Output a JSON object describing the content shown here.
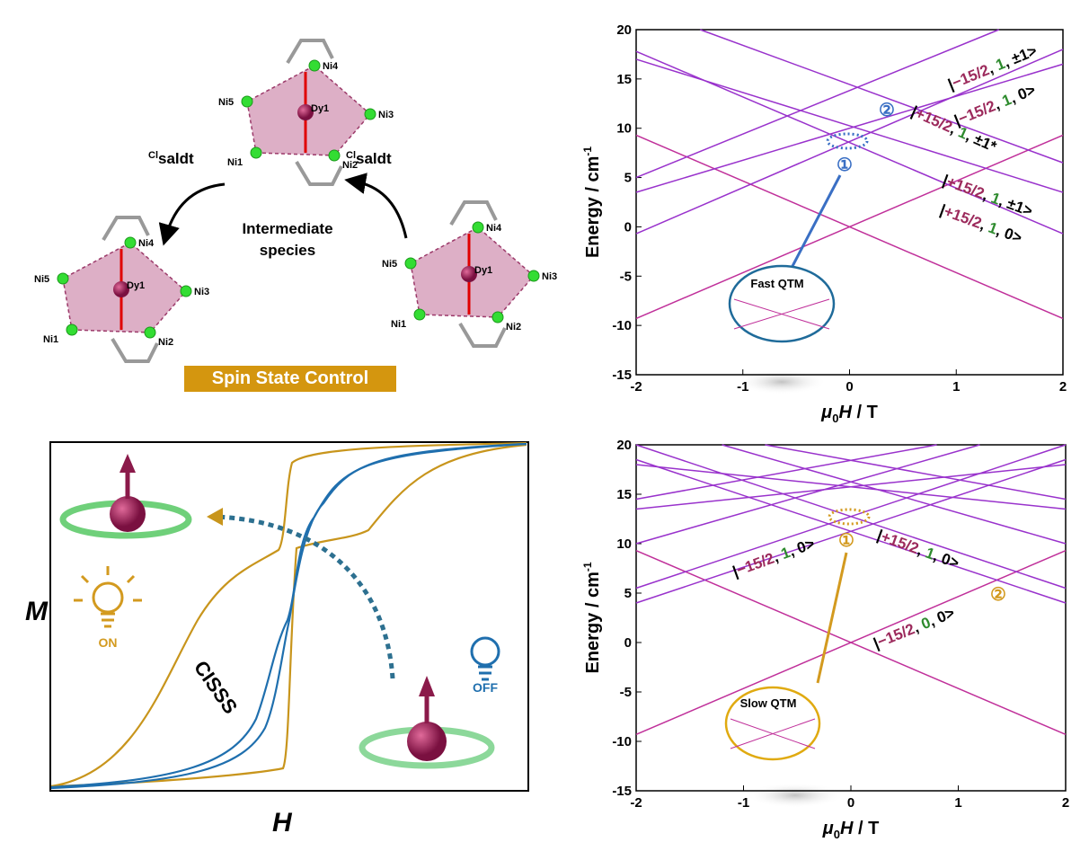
{
  "scheme": {
    "ligand_left": {
      "sup": "Cl",
      "text": "saldt"
    },
    "ligand_right": {
      "sup": "Cl",
      "text": "saldt"
    },
    "intermediate": [
      "Intermediate",
      "species"
    ],
    "banner": "Spin State Control",
    "clusters": [
      {
        "atoms": [
          "Dy1",
          "Ni1",
          "Ni2",
          "Ni3",
          "Ni4",
          "Ni5"
        ]
      },
      {
        "atoms": [
          "Dy1",
          "Ni1",
          "Ni2",
          "Ni3",
          "Ni4",
          "Ni5"
        ]
      },
      {
        "atoms": [
          "Dy1",
          "Ni1",
          "Ni2",
          "Ni3",
          "Ni4",
          "Ni5"
        ]
      }
    ]
  },
  "hysteresis": {
    "y_label": "M",
    "x_label": "H",
    "curve_label": "CISSS",
    "on_label": "ON",
    "off_label": "OFF"
  },
  "chart_data": [
    {
      "type": "line",
      "x_label": [
        "μ",
        "0",
        "H",
        " / T"
      ],
      "y_label": [
        "Energy / cm",
        "-1"
      ],
      "xlim": [
        -2,
        2
      ],
      "ylim": [
        -15,
        20
      ],
      "xticks": [
        -2,
        -1,
        0,
        1,
        2
      ],
      "yticks": [
        -15,
        -10,
        -5,
        0,
        5,
        10,
        15,
        20
      ],
      "series": [
        {
          "color": "#c0309a",
          "x": [
            -2,
            2
          ],
          "values": [
            -9.3,
            9.3
          ]
        },
        {
          "color": "#c0309a",
          "x": [
            -2,
            2
          ],
          "values": [
            9.3,
            -9.3
          ]
        },
        {
          "color": "#9932cc",
          "x": [
            -2,
            2
          ],
          "values": [
            -0.7,
            18
          ]
        },
        {
          "color": "#9932cc",
          "x": [
            -2,
            2
          ],
          "values": [
            17.8,
            -0.7
          ]
        },
        {
          "color": "#9932cc",
          "x": [
            -2,
            2
          ],
          "values": [
            3.5,
            16.5
          ]
        },
        {
          "color": "#9932cc",
          "x": [
            -2,
            2
          ],
          "values": [
            17,
            3.5
          ]
        },
        {
          "color": "#9932cc",
          "x": [
            -1.4,
            2
          ],
          "values": [
            20,
            6.5
          ]
        },
        {
          "color": "#9932cc",
          "x": [
            -2,
            1.4
          ],
          "values": [
            5,
            20
          ]
        }
      ],
      "annotations": [
        {
          "parts": [
            "|",
            "−15/2",
            ", ",
            "1",
            ", ±1>"
          ]
        },
        {
          "parts": [
            "|",
            "−15/2",
            ", ",
            "1",
            ", 0>"
          ]
        },
        {
          "parts": [
            "|",
            "+15/2",
            ", ",
            "1",
            ", ±1*"
          ]
        },
        {
          "parts": [
            "|",
            "+15/2",
            ", ",
            "1",
            ", ±1>"
          ]
        },
        {
          "parts": [
            "|",
            "+15/2",
            ", ",
            "1",
            ", 0>"
          ]
        }
      ],
      "markers": [
        "①",
        "②"
      ],
      "inset_label": "Fast QTM"
    },
    {
      "type": "line",
      "x_label": [
        "μ",
        "0",
        "H",
        " / T"
      ],
      "y_label": [
        "Energy / cm",
        "-1"
      ],
      "xlim": [
        -2,
        2
      ],
      "ylim": [
        -15,
        20
      ],
      "xticks": [
        -2,
        -1,
        0,
        1,
        2
      ],
      "yticks": [
        -15,
        -10,
        -5,
        0,
        5,
        10,
        15,
        20
      ],
      "series": [
        {
          "color": "#c0309a",
          "x": [
            -2,
            2
          ],
          "values": [
            -9.3,
            9.3
          ]
        },
        {
          "color": "#c0309a",
          "x": [
            -2,
            2
          ],
          "values": [
            9.3,
            -9.3
          ]
        },
        {
          "color": "#9932cc",
          "x": [
            -2,
            2
          ],
          "values": [
            4,
            18.5
          ]
        },
        {
          "color": "#9932cc",
          "x": [
            -2,
            2
          ],
          "values": [
            18.5,
            4
          ]
        },
        {
          "color": "#9932cc",
          "x": [
            -2,
            2
          ],
          "values": [
            5.5,
            20
          ]
        },
        {
          "color": "#9932cc",
          "x": [
            -2,
            2
          ],
          "values": [
            20,
            5.5
          ]
        },
        {
          "color": "#9932cc",
          "x": [
            -2,
            1.2
          ],
          "values": [
            10,
            20
          ]
        },
        {
          "color": "#9932cc",
          "x": [
            -1.2,
            2
          ],
          "values": [
            20,
            10
          ]
        },
        {
          "color": "#9932cc",
          "x": [
            -2,
            2
          ],
          "values": [
            13.5,
            18
          ]
        },
        {
          "color": "#9932cc",
          "x": [
            -2,
            2
          ],
          "values": [
            18,
            13.5
          ]
        },
        {
          "color": "#9932cc",
          "x": [
            -2,
            0.8
          ],
          "values": [
            14.5,
            20
          ]
        },
        {
          "color": "#9932cc",
          "x": [
            -0.8,
            2
          ],
          "values": [
            20,
            14.5
          ]
        }
      ],
      "annotations": [
        {
          "parts": [
            "|",
            "−15/2",
            ", ",
            "1",
            ", 0>"
          ]
        },
        {
          "parts": [
            "|",
            "+15/2",
            ", ",
            "1",
            ", 0>"
          ]
        },
        {
          "parts": [
            "|",
            "−15/2",
            ", ",
            "0",
            ", 0>"
          ]
        }
      ],
      "markers": [
        "①",
        "②"
      ],
      "inset_label": "Slow QTM"
    }
  ]
}
